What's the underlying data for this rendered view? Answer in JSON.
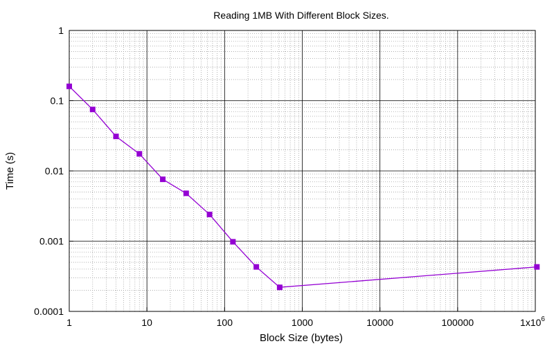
{
  "chart_data": {
    "type": "line",
    "title": "Reading 1MB With Different Block Sizes.",
    "xlabel": "Block Size (bytes)",
    "ylabel": "Time (s)",
    "xscale": "log",
    "yscale": "log",
    "xlim": [
      1,
      1000000
    ],
    "ylim": [
      0.0001,
      1
    ],
    "grid": true,
    "legend": "none",
    "colors": {
      "series": "#9400d3",
      "marker": "#9400d3",
      "grid_major": "#000000",
      "grid_minor": "#a0a0a0"
    },
    "x_ticks": [
      {
        "value": 1,
        "label": "1"
      },
      {
        "value": 10,
        "label": "10"
      },
      {
        "value": 100,
        "label": "100"
      },
      {
        "value": 1000,
        "label": "1000"
      },
      {
        "value": 10000,
        "label": "10000"
      },
      {
        "value": 100000,
        "label": "100000"
      },
      {
        "value": 1000000,
        "label": "1x10",
        "sup": "6"
      }
    ],
    "y_ticks": [
      {
        "value": 0.0001,
        "label": "0.0001"
      },
      {
        "value": 0.001,
        "label": "0.001"
      },
      {
        "value": 0.01,
        "label": "0.01"
      },
      {
        "value": 0.1,
        "label": "0.1"
      },
      {
        "value": 1,
        "label": "1"
      }
    ],
    "series": [
      {
        "x": [
          1,
          2,
          4,
          8,
          16,
          32,
          64,
          128,
          256,
          512,
          1048576
        ],
        "y": [
          0.16,
          0.075,
          0.031,
          0.0175,
          0.0076,
          0.0048,
          0.0024,
          0.00098,
          0.00043,
          0.00022,
          0.00043
        ]
      }
    ]
  }
}
